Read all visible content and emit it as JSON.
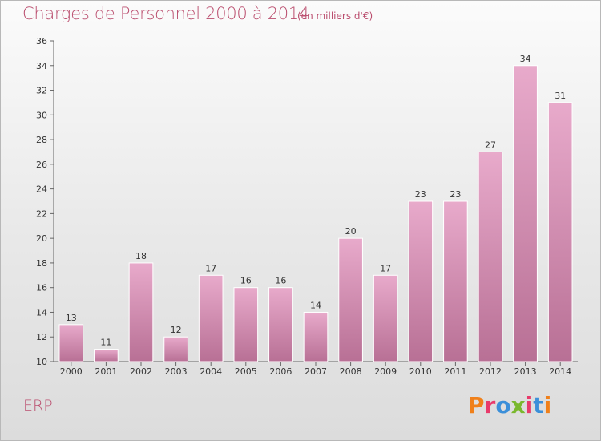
{
  "header": {
    "title": "Charges de Personnel 2000 à 2014",
    "subtitle": "(en milliers d'€)"
  },
  "footer": {
    "label": "ERP",
    "logo_text": "Proxiti",
    "logo_colors": [
      "#f0801a",
      "#e83a6b",
      "#3b8fd9",
      "#7ab82e",
      "#e83a6b",
      "#3b8fd9",
      "#f0801a"
    ]
  },
  "colors": {
    "bar_light": "#e8aacb",
    "bar_dark": "#b87095",
    "title": "#bb4f6f"
  },
  "chart_data": {
    "type": "bar",
    "categories": [
      "2000",
      "2001",
      "2002",
      "2003",
      "2004",
      "2005",
      "2006",
      "2007",
      "2008",
      "2009",
      "2010",
      "2011",
      "2012",
      "2013",
      "2014"
    ],
    "values": [
      13,
      11,
      18,
      12,
      17,
      16,
      16,
      14,
      20,
      17,
      23,
      23,
      27,
      34,
      31
    ],
    "ylim": [
      10,
      36
    ],
    "yticks": [
      10,
      12,
      14,
      16,
      18,
      20,
      22,
      24,
      26,
      28,
      30,
      32,
      34,
      36
    ],
    "grid": false,
    "title": "Charges de Personnel 2000 à 2014",
    "xlabel": "",
    "ylabel": ""
  }
}
